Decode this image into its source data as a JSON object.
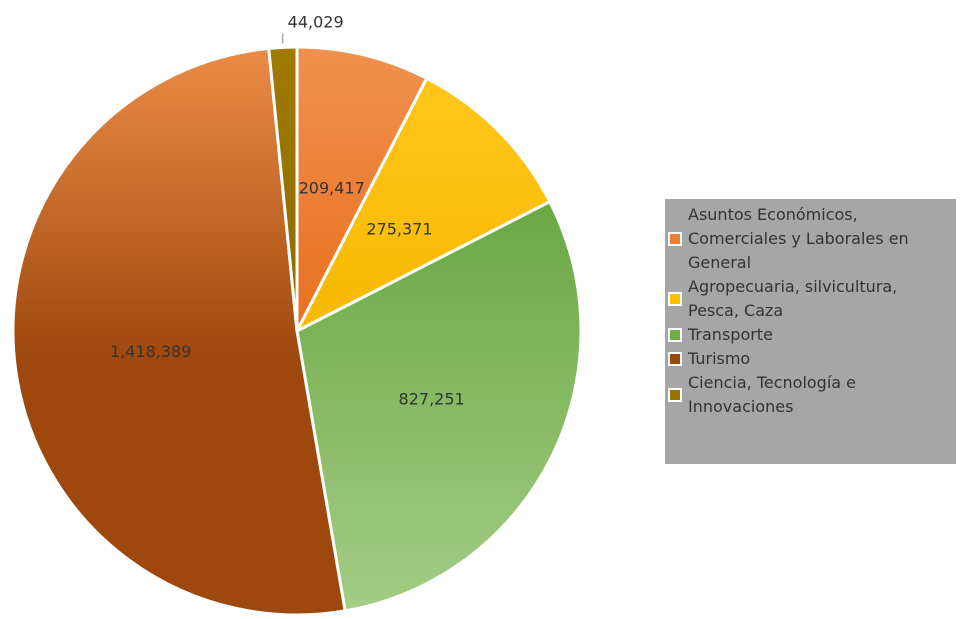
{
  "chart_data": {
    "type": "pie",
    "title": "",
    "categories": [
      "Asuntos Económicos, Comerciales y Laborales en General",
      "Agropecuaria, silvicultura, Pesca, Caza",
      "Transporte",
      "Turismo",
      "Ciencia, Tecnología e Innovaciones"
    ],
    "values": [
      209417,
      275371,
      827251,
      1418389,
      44029
    ],
    "value_labels": [
      "209,417",
      "275,371",
      "827,251",
      "1,418,389",
      "44,029"
    ],
    "colors": [
      "#ED7D31",
      "#FFC000",
      "#70AD47",
      "#9E480E",
      "#997300"
    ],
    "start_angle_deg": 0,
    "direction": "clockwise",
    "legend_position": "right",
    "legend_background": "#A6A6A6",
    "grid": false
  }
}
